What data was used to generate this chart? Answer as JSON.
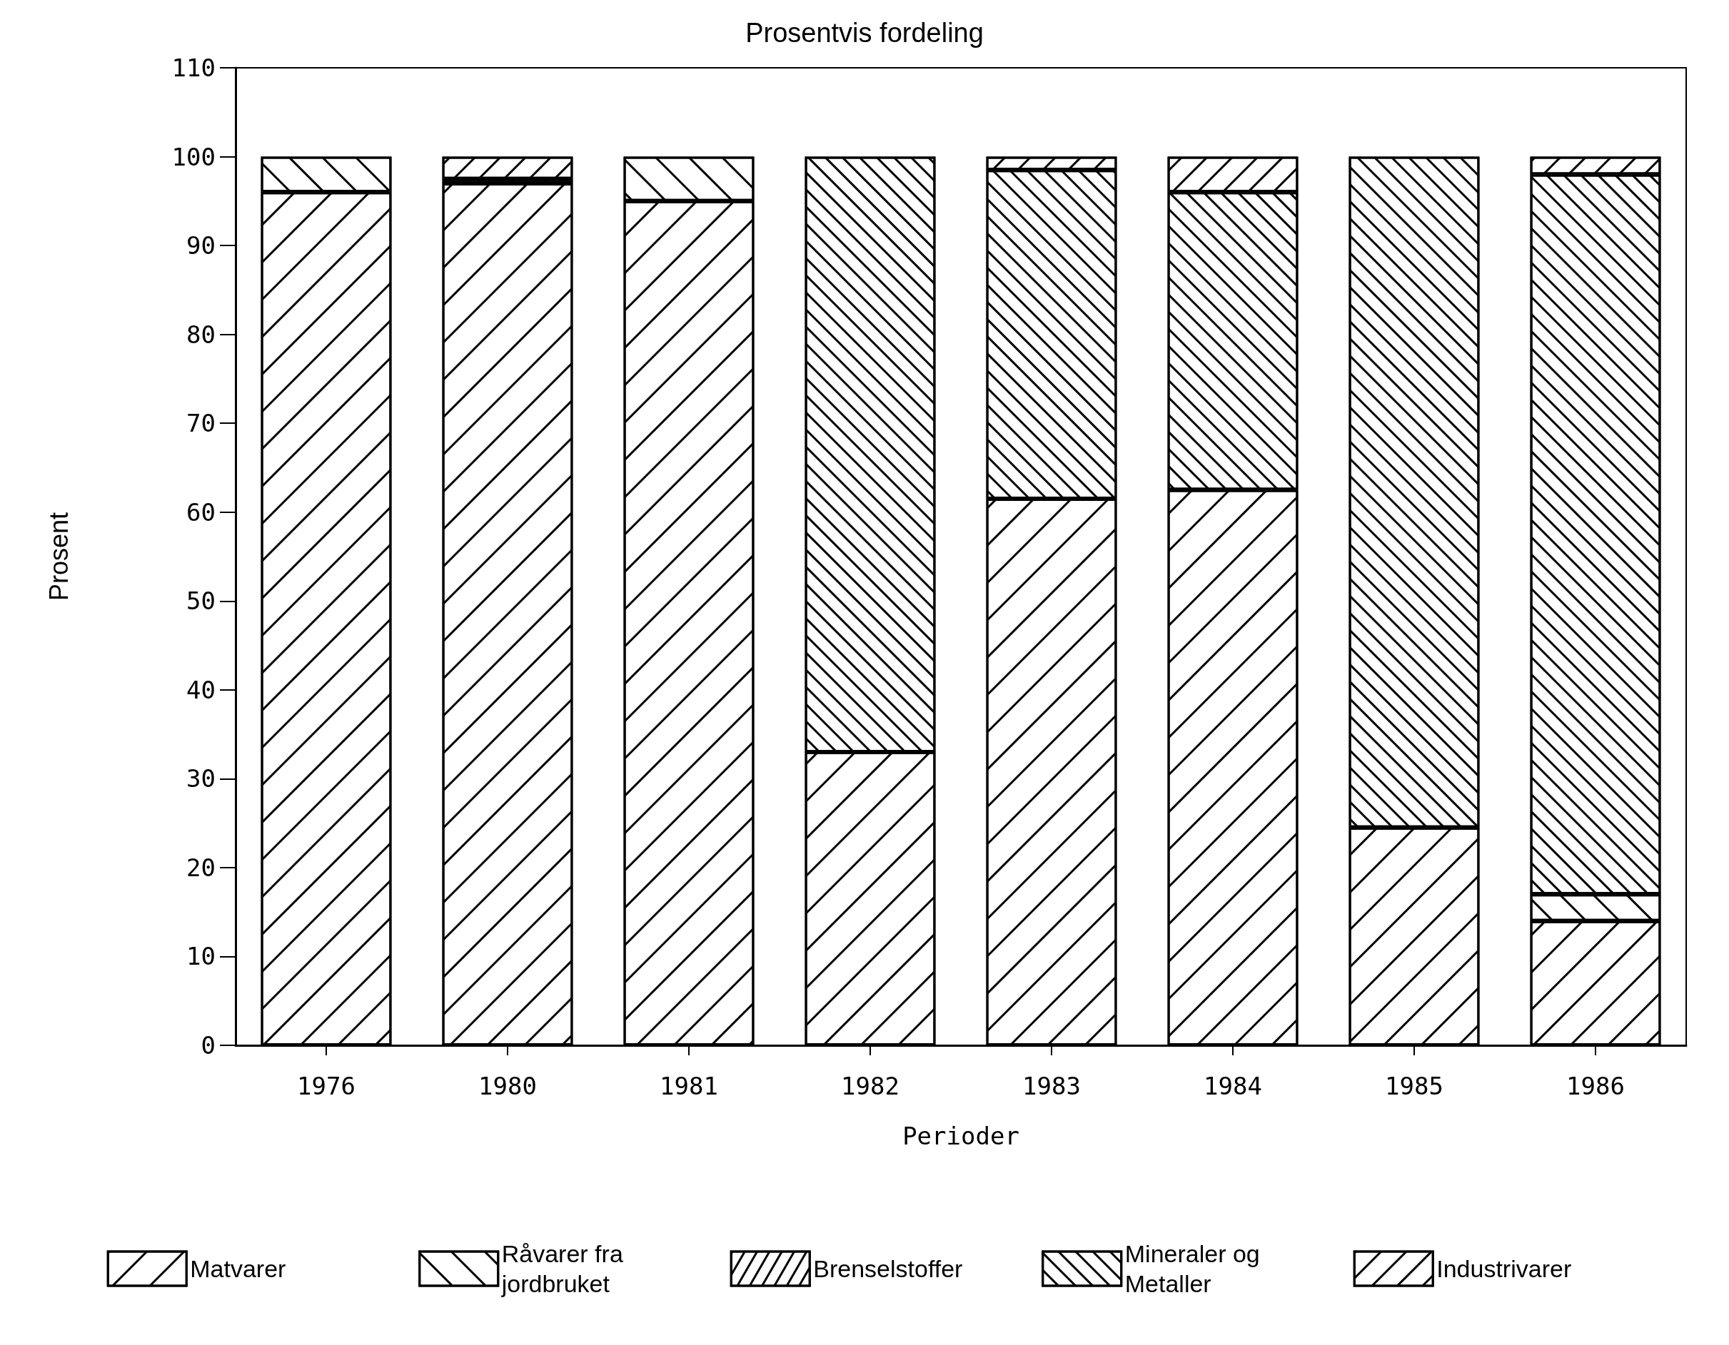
{
  "chart_data": {
    "type": "bar",
    "title": "Prosentvis fordeling",
    "xlabel": "Perioder",
    "ylabel": "Prosent",
    "stacked": true,
    "categories": [
      "1976",
      "1980",
      "1981",
      "1982",
      "1983",
      "1984",
      "1985",
      "1986"
    ],
    "series": [
      {
        "name": "Matvarer",
        "color": "#ffffff",
        "values": [
          96,
          97,
          95,
          33,
          61.5,
          62.5,
          24.5,
          14
        ]
      },
      {
        "name": "Råvarer fra jordbruket",
        "color": "#ffffff",
        "values": [
          4,
          0.5,
          5,
          0,
          0,
          0,
          0,
          3
        ]
      },
      {
        "name": "Brenselstoffer",
        "color": "#ffffff",
        "values": [
          0,
          0,
          0,
          0,
          0,
          0,
          0,
          0
        ]
      },
      {
        "name": "Mineraler og Metaller",
        "color": "#ffffff",
        "values": [
          0,
          0,
          0,
          67,
          37,
          33.5,
          75.5,
          81
        ]
      },
      {
        "name": "Industrivarer",
        "color": "#ffffff",
        "values": [
          0,
          2.5,
          0,
          0,
          1.5,
          4,
          0,
          2
        ]
      }
    ],
    "ylim": [
      0,
      110
    ],
    "yticks": [
      0,
      10,
      20,
      30,
      40,
      50,
      60,
      70,
      80,
      90,
      100,
      110
    ],
    "grid": false,
    "legend": "bottom"
  }
}
